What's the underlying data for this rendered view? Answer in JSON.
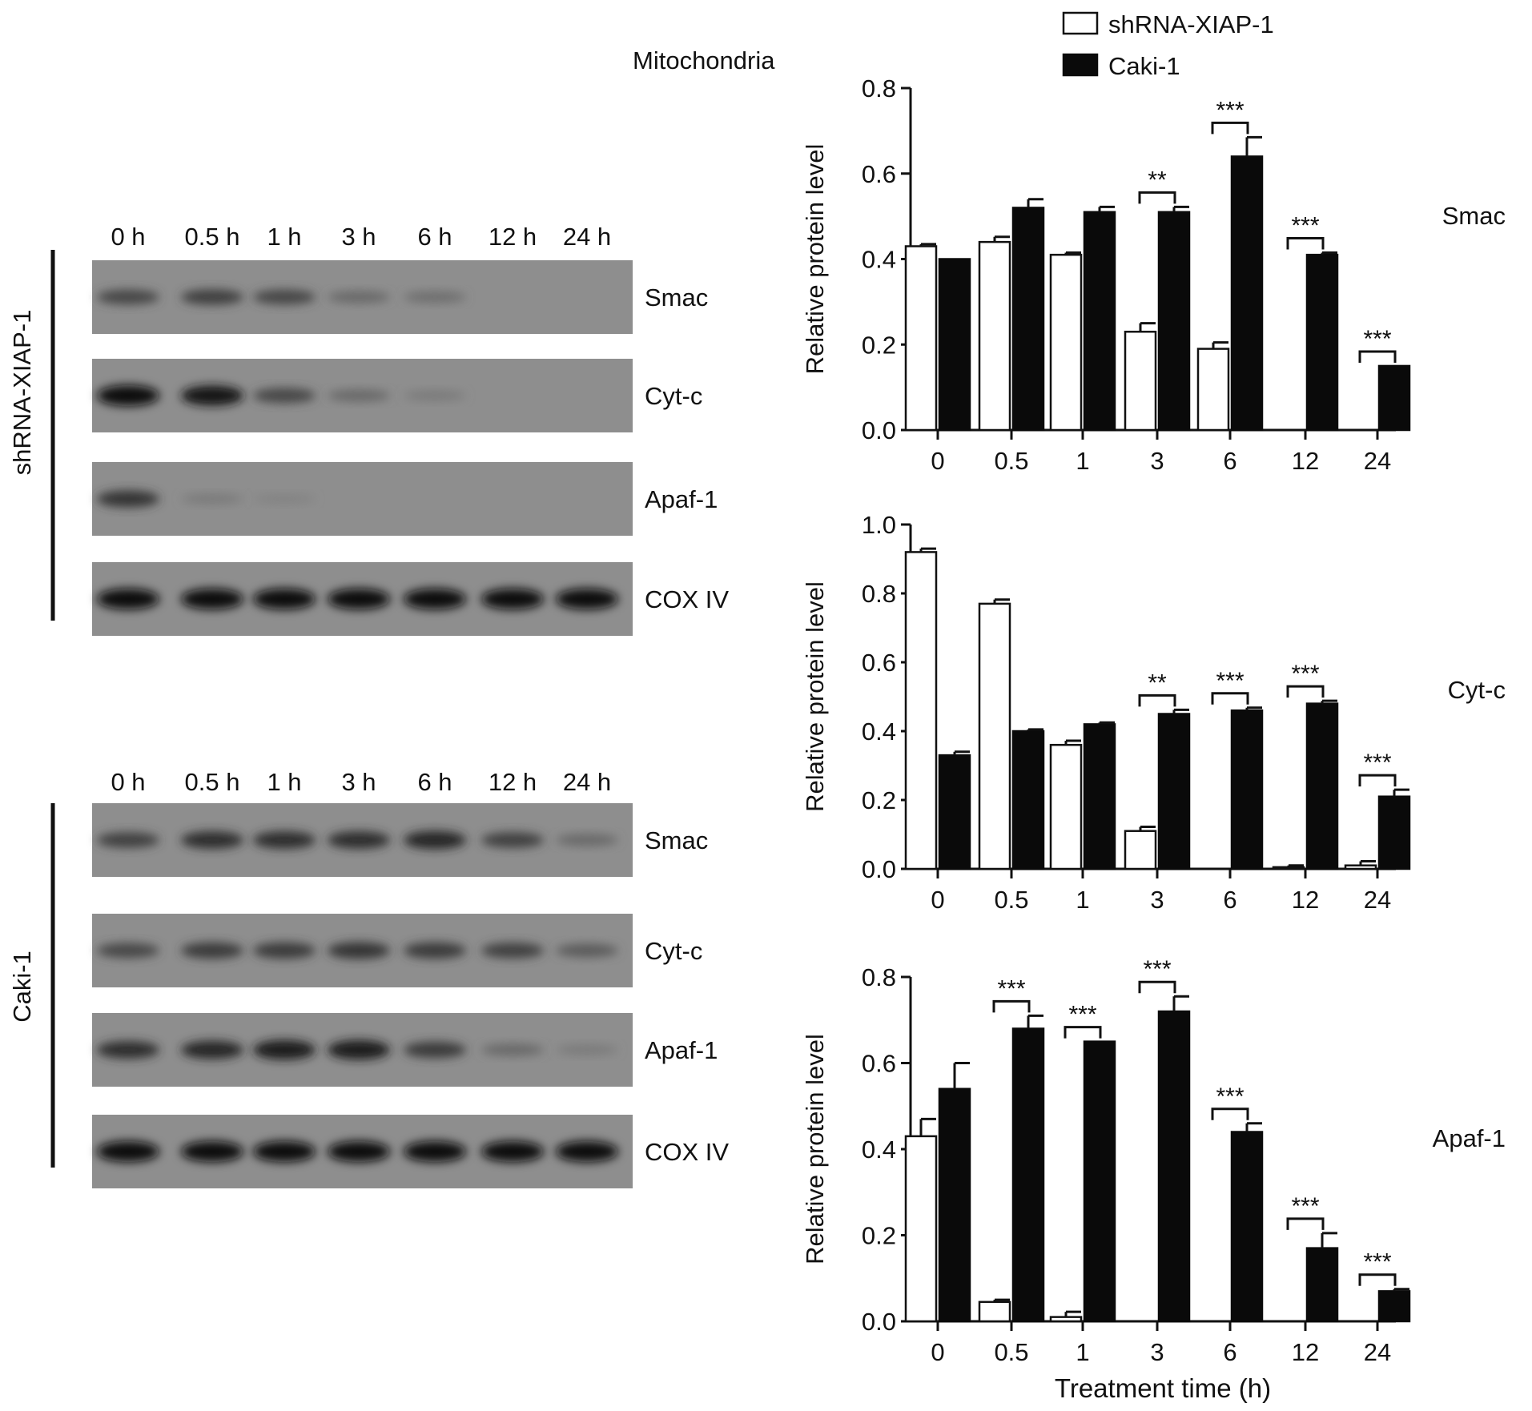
{
  "figure": {
    "section_label": "Mitochondria",
    "x_axis_title": "Treatment time (h)"
  },
  "legend": {
    "entries": [
      {
        "label": "shRNA-XIAP-1",
        "style": "open"
      },
      {
        "label": "Caki-1",
        "style": "filled"
      }
    ]
  },
  "blots": {
    "time_labels": [
      "0 h",
      "0.5 h",
      "1 h",
      "3 h",
      "6 h",
      "12 h",
      "24 h"
    ],
    "panels": [
      {
        "group_label": "shRNA-XIAP-1",
        "strips": [
          {
            "protein": "Smac",
            "band_intensity": [
              0.55,
              0.6,
              0.55,
              0.3,
              0.25,
              0.0,
              0.0
            ]
          },
          {
            "protein": "Cyt-c",
            "band_intensity": [
              1.0,
              0.95,
              0.55,
              0.3,
              0.15,
              0.0,
              0.0
            ]
          },
          {
            "protein": "Apaf-1",
            "band_intensity": [
              0.7,
              0.15,
              0.08,
              0.0,
              0.0,
              0.0,
              0.0
            ]
          },
          {
            "protein": "COX IV",
            "band_intensity": [
              1.0,
              1.0,
              1.0,
              1.0,
              1.0,
              1.0,
              1.0
            ]
          }
        ]
      },
      {
        "group_label": "Caki-1",
        "strips": [
          {
            "protein": "Smac",
            "band_intensity": [
              0.6,
              0.75,
              0.75,
              0.75,
              0.8,
              0.6,
              0.3
            ]
          },
          {
            "protein": "Cyt-c",
            "band_intensity": [
              0.55,
              0.65,
              0.65,
              0.7,
              0.65,
              0.6,
              0.4
            ]
          },
          {
            "protein": "Apaf-1",
            "band_intensity": [
              0.75,
              0.8,
              0.9,
              0.9,
              0.65,
              0.3,
              0.15
            ]
          },
          {
            "protein": "COX IV",
            "band_intensity": [
              1.0,
              1.0,
              1.0,
              1.0,
              1.0,
              1.0,
              1.0
            ]
          }
        ]
      }
    ]
  },
  "chart_data": [
    {
      "type": "bar",
      "title": "",
      "side_label": "Smac",
      "xlabel": "",
      "ylabel": "Relative protein level",
      "categories": [
        "0",
        "0.5",
        "1",
        "3",
        "6",
        "12",
        "24"
      ],
      "ylim": [
        0,
        0.8
      ],
      "yticks": [
        "0.0",
        "0.2",
        "0.4",
        "0.6",
        "0.8"
      ],
      "series": [
        {
          "name": "shRNA-XIAP-1",
          "style": "open",
          "values": [
            0.43,
            0.44,
            0.41,
            0.23,
            0.19,
            0.0,
            0.0
          ],
          "errors": [
            0.005,
            0.012,
            0.005,
            0.02,
            0.015,
            0,
            0
          ]
        },
        {
          "name": "Caki-1",
          "style": "filled",
          "values": [
            0.4,
            0.52,
            0.51,
            0.51,
            0.64,
            0.41,
            0.15
          ],
          "errors": [
            0.0,
            0.02,
            0.012,
            0.012,
            0.045,
            0.005,
            0.0
          ]
        }
      ],
      "significance": [
        {
          "category": "3",
          "mark": "**"
        },
        {
          "category": "6",
          "mark": "***"
        },
        {
          "category": "12",
          "mark": "***"
        },
        {
          "category": "24",
          "mark": "***"
        }
      ]
    },
    {
      "type": "bar",
      "title": "",
      "side_label": "Cyt-c",
      "xlabel": "",
      "ylabel": "Relative protein level",
      "categories": [
        "0",
        "0.5",
        "1",
        "3",
        "6",
        "12",
        "24"
      ],
      "ylim": [
        0,
        1.0
      ],
      "yticks": [
        "0.0",
        "0.2",
        "0.4",
        "0.6",
        "0.8",
        "1.0"
      ],
      "series": [
        {
          "name": "shRNA-XIAP-1",
          "style": "open",
          "values": [
            0.92,
            0.77,
            0.36,
            0.11,
            0.0,
            0.005,
            0.01
          ],
          "errors": [
            0.01,
            0.012,
            0.012,
            0.012,
            0,
            0.005,
            0.012
          ]
        },
        {
          "name": "Caki-1",
          "style": "filled",
          "values": [
            0.33,
            0.4,
            0.42,
            0.45,
            0.46,
            0.48,
            0.21
          ],
          "errors": [
            0.01,
            0.005,
            0.005,
            0.012,
            0.008,
            0.008,
            0.02
          ]
        }
      ],
      "significance": [
        {
          "category": "3",
          "mark": "**"
        },
        {
          "category": "6",
          "mark": "***"
        },
        {
          "category": "12",
          "mark": "***"
        },
        {
          "category": "24",
          "mark": "***"
        }
      ]
    },
    {
      "type": "bar",
      "title": "",
      "side_label": "Apaf-1",
      "xlabel": "Treatment time (h)",
      "ylabel": "Relative protein level",
      "categories": [
        "0",
        "0.5",
        "1",
        "3",
        "6",
        "12",
        "24"
      ],
      "ylim": [
        0,
        0.8
      ],
      "yticks": [
        "0.0",
        "0.2",
        "0.4",
        "0.6",
        "0.8"
      ],
      "series": [
        {
          "name": "shRNA-XIAP-1",
          "style": "open",
          "values": [
            0.43,
            0.045,
            0.01,
            0.0,
            0.0,
            0.0,
            0.0
          ],
          "errors": [
            0.04,
            0.005,
            0.012,
            0,
            0,
            0,
            0
          ]
        },
        {
          "name": "Caki-1",
          "style": "filled",
          "values": [
            0.54,
            0.68,
            0.65,
            0.72,
            0.44,
            0.17,
            0.07
          ],
          "errors": [
            0.06,
            0.03,
            0.0,
            0.035,
            0.02,
            0.035,
            0.005
          ]
        }
      ],
      "significance": [
        {
          "category": "0.5",
          "mark": "***"
        },
        {
          "category": "1",
          "mark": "***"
        },
        {
          "category": "3",
          "mark": "***"
        },
        {
          "category": "6",
          "mark": "***"
        },
        {
          "category": "12",
          "mark": "***"
        },
        {
          "category": "24",
          "mark": "***"
        }
      ]
    }
  ]
}
